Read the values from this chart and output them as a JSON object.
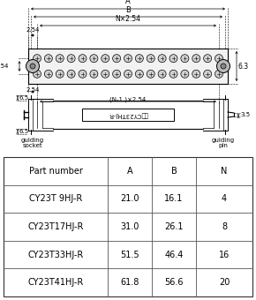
{
  "table_headers": [
    "Part number",
    "A",
    "B",
    "N"
  ],
  "table_rows": [
    [
      "CY23T 9HJ-R",
      "21.0",
      "16.1",
      "4"
    ],
    [
      "CY23T17HJ-R",
      "31.0",
      "26.1",
      "8"
    ],
    [
      "CY23T33HJ-R",
      "51.5",
      "46.4",
      "16"
    ],
    [
      "CY23T41HJ-R",
      "61.8",
      "56.6",
      "20"
    ]
  ],
  "bg_color": "#ffffff",
  "line_color": "#000000",
  "body_fill": "#f2f2f2",
  "pin_fill": "#d0d0d0",
  "guide_fill": "#b8b8b8",
  "n_pins": 17,
  "dim_2_54_v": "2.54",
  "dim_2_54_h": "2.54",
  "dim_N254": "N×2.54",
  "dim_Nm1": "(N-1 )×2.54",
  "dim_A": "A",
  "dim_B": "B",
  "dim_63": "6.3",
  "dim_65a": "6.5",
  "dim_65b": "6.5",
  "dim_35": "3.5",
  "label_socket": "guiding\nsocket",
  "label_pin": "guiding\npin",
  "center_label": "引コCY23THJ-R"
}
